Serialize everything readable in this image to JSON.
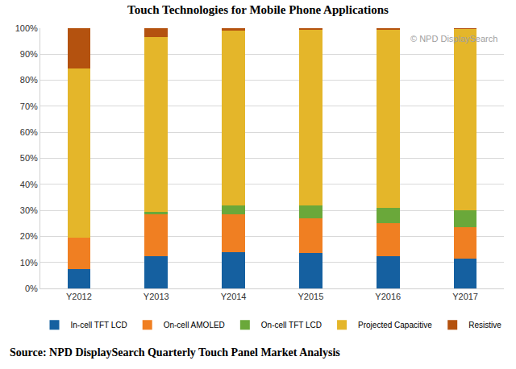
{
  "chart_data": {
    "type": "bar",
    "stacked": true,
    "title": "Touch Technologies for Mobile Phone Applications",
    "annotations": [
      "© NPD DisplaySearch"
    ],
    "source": "Source: NPD DisplaySearch Quarterly Touch Panel Market Analysis",
    "categories": [
      "Y2012",
      "Y2013",
      "Y2014",
      "Y2015",
      "Y2016",
      "Y2017"
    ],
    "series": [
      {
        "name": "In-cell TFT LCD",
        "color": "#1560a0",
        "values": [
          7.5,
          12.5,
          14,
          13.5,
          12.5,
          11.5
        ]
      },
      {
        "name": "On-cell AMOLED",
        "color": "#f07f22",
        "values": [
          12,
          16,
          14.5,
          13.5,
          12.5,
          12
        ]
      },
      {
        "name": "On-cell TFT LCD",
        "color": "#6aa83a",
        "values": [
          0,
          1,
          3.5,
          5,
          6,
          6.5
        ]
      },
      {
        "name": "Projected Capacitive",
        "color": "#e4b62a",
        "values": [
          65,
          67,
          67,
          67.5,
          68.5,
          69.8
        ]
      },
      {
        "name": "Resistive",
        "color": "#b4520f",
        "values": [
          15.5,
          3.5,
          1,
          0.5,
          0.5,
          0.2
        ]
      }
    ],
    "ylim": [
      0,
      100
    ],
    "yticks": [
      {
        "value": 0,
        "label": "0%"
      },
      {
        "value": 10,
        "label": "10%"
      },
      {
        "value": 20,
        "label": "20%"
      },
      {
        "value": 30,
        "label": "30%"
      },
      {
        "value": 40,
        "label": "40%"
      },
      {
        "value": 50,
        "label": "50%"
      },
      {
        "value": 60,
        "label": "60%"
      },
      {
        "value": 70,
        "label": "70%"
      },
      {
        "value": 80,
        "label": "80%"
      },
      {
        "value": 90,
        "label": "90%"
      },
      {
        "value": 100,
        "label": "100%"
      }
    ],
    "grid": true,
    "legend": "bottom"
  }
}
